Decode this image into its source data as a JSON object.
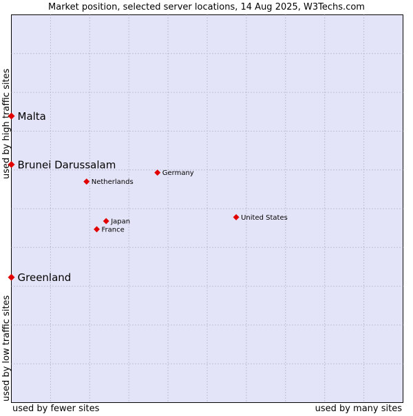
{
  "chart_data": {
    "type": "scatter",
    "title": "Market position, selected server locations, 14 Aug 2025, W3Techs.com",
    "xlabel_left": "used by fewer sites",
    "xlabel_right": "used by many sites",
    "ylabel_bottom": "used by low traffic sites",
    "ylabel_top": "used by high traffic sites",
    "xlim": [
      0,
      100
    ],
    "ylim": [
      0,
      100
    ],
    "grid": true,
    "points": [
      {
        "name": "Malta",
        "x": 0.0,
        "y": 73.9,
        "highlight": true
      },
      {
        "name": "Brunei Darussalam",
        "x": 0.0,
        "y": 61.4,
        "highlight": true
      },
      {
        "name": "Greenland",
        "x": 0.0,
        "y": 32.3,
        "highlight": true
      },
      {
        "name": "Germany",
        "x": 37.3,
        "y": 59.3,
        "highlight": false
      },
      {
        "name": "Netherlands",
        "x": 19.2,
        "y": 57.0,
        "highlight": false
      },
      {
        "name": "United States",
        "x": 57.4,
        "y": 47.8,
        "highlight": false
      },
      {
        "name": "Japan",
        "x": 24.2,
        "y": 46.8,
        "highlight": false
      },
      {
        "name": "France",
        "x": 21.8,
        "y": 44.7,
        "highlight": false
      }
    ],
    "colors": {
      "point": "#e00000",
      "plot_bg": "#e4e4f8",
      "grid": "#9a9ab0"
    }
  }
}
